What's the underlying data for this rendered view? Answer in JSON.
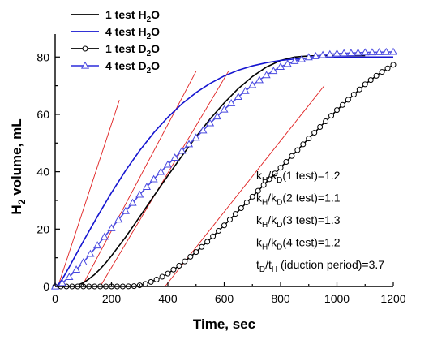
{
  "chart_data": {
    "type": "line",
    "xlabel": "Time, sec",
    "ylabel": {
      "main": "H",
      "sub": "2",
      "rest": " volume, mL"
    },
    "xlim": [
      0,
      1200
    ],
    "ylim": [
      0,
      88
    ],
    "xticks": [
      0,
      200,
      400,
      600,
      800,
      1000,
      1200
    ],
    "yticks": [
      0,
      20,
      40,
      60,
      80
    ],
    "grid": false,
    "legend_position": "top-left",
    "series": [
      {
        "name": "1 test H2O",
        "legend": {
          "main": "1 test H",
          "sub": "2",
          "rest": "O"
        },
        "color": "#000000",
        "marker": "none",
        "x": [
          0,
          60,
          80,
          100,
          120,
          140,
          160,
          180,
          200,
          250,
          300,
          350,
          400,
          450,
          500,
          550,
          600,
          650,
          700,
          750,
          800,
          850,
          900,
          950,
          1000,
          1050,
          1100
        ],
        "y": [
          0,
          0,
          0.5,
          1.3,
          2.6,
          4.2,
          6.1,
          8.3,
          10.7,
          17.2,
          24.3,
          31.5,
          38.6,
          45.5,
          52.2,
          58.4,
          64.0,
          69.0,
          73.2,
          76.5,
          78.8,
          80.0,
          80.4,
          80.5,
          80.5,
          80.5,
          80.5
        ]
      },
      {
        "name": "4 test H2O",
        "legend": {
          "main": "4 test H",
          "sub": "2",
          "rest": "O"
        },
        "color": "#1515d0",
        "marker": "none",
        "x": [
          0,
          10,
          25,
          50,
          100,
          150,
          200,
          250,
          300,
          350,
          400,
          450,
          500,
          550,
          600,
          650,
          700,
          750,
          800,
          850,
          900,
          950,
          1000,
          1050,
          1100,
          1150,
          1200
        ],
        "y": [
          0,
          0.5,
          2.5,
          6.8,
          15.8,
          24.4,
          32.7,
          40.4,
          47.4,
          53.6,
          59.0,
          63.7,
          67.6,
          70.8,
          73.4,
          75.4,
          76.9,
          78.0,
          78.8,
          79.3,
          79.6,
          79.8,
          79.9,
          80.0,
          80.0,
          80.0,
          80.0
        ]
      },
      {
        "name": "1 test D2O",
        "legend": {
          "main": "1 test D",
          "sub": "2",
          "rest": "O"
        },
        "color": "#000000",
        "marker": "circle",
        "x": [
          0,
          50,
          100,
          150,
          200,
          250,
          280,
          300,
          320,
          340,
          360,
          380,
          400,
          450,
          500,
          550,
          600,
          650,
          700,
          750,
          800,
          850,
          900,
          950,
          1000,
          1050,
          1100,
          1150,
          1200
        ],
        "y": [
          0,
          0,
          0,
          0,
          0,
          0,
          0.1,
          0.4,
          0.9,
          1.6,
          2.4,
          3.4,
          4.5,
          7.9,
          12.0,
          16.5,
          21.3,
          26.3,
          31.3,
          36.4,
          41.4,
          46.5,
          51.6,
          56.6,
          61.5,
          66.0,
          70.5,
          74.2,
          77.3
        ]
      },
      {
        "name": "4 test D2O",
        "legend": {
          "main": "4 test D",
          "sub": "2",
          "rest": "O"
        },
        "color": "#4a4ae0",
        "marker": "triangle",
        "x": [
          0,
          10,
          25,
          50,
          100,
          150,
          200,
          250,
          300,
          350,
          400,
          450,
          500,
          550,
          600,
          650,
          700,
          750,
          800,
          850,
          900,
          950,
          1000,
          1050,
          1100,
          1150,
          1200
        ],
        "y": [
          0,
          0.2,
          1.2,
          3.3,
          8.4,
          14.3,
          20.3,
          26.3,
          32.0,
          37.4,
          42.5,
          47.3,
          51.9,
          56.9,
          61.7,
          66.1,
          70.2,
          73.7,
          76.6,
          78.6,
          79.9,
          80.7,
          81.2,
          81.4,
          81.6,
          81.7,
          81.8
        ]
      }
    ],
    "fit_lines": {
      "color": "#e02020",
      "segments": [
        {
          "x": [
            10,
            228
          ],
          "y": [
            0,
            65
          ]
        },
        {
          "x": [
            95,
            500
          ],
          "y": [
            0,
            75
          ]
        },
        {
          "x": [
            160,
            615
          ],
          "y": [
            0,
            75
          ]
        },
        {
          "x": [
            390,
            955
          ],
          "y": [
            0,
            70
          ]
        }
      ]
    },
    "annotations": [
      {
        "main": "k",
        "sub1": "H",
        "mid": "/k",
        "sub2": "D",
        "rest": "(1 test)=1.2"
      },
      {
        "main": "k",
        "sub1": "H",
        "mid": "/k",
        "sub2": "D",
        "rest": "(2 test)=1.1"
      },
      {
        "main": "k",
        "sub1": "H",
        "mid": "/k",
        "sub2": "D",
        "rest": "(3 test)=1.3"
      },
      {
        "main": "k",
        "sub1": "H",
        "mid": "/k",
        "sub2": "D",
        "rest": "(4 test)=1.2"
      },
      {
        "main": "t",
        "sub1": "D",
        "mid": "/t",
        "sub2": "H",
        "rest": " (iduction period)=3.7"
      }
    ]
  }
}
